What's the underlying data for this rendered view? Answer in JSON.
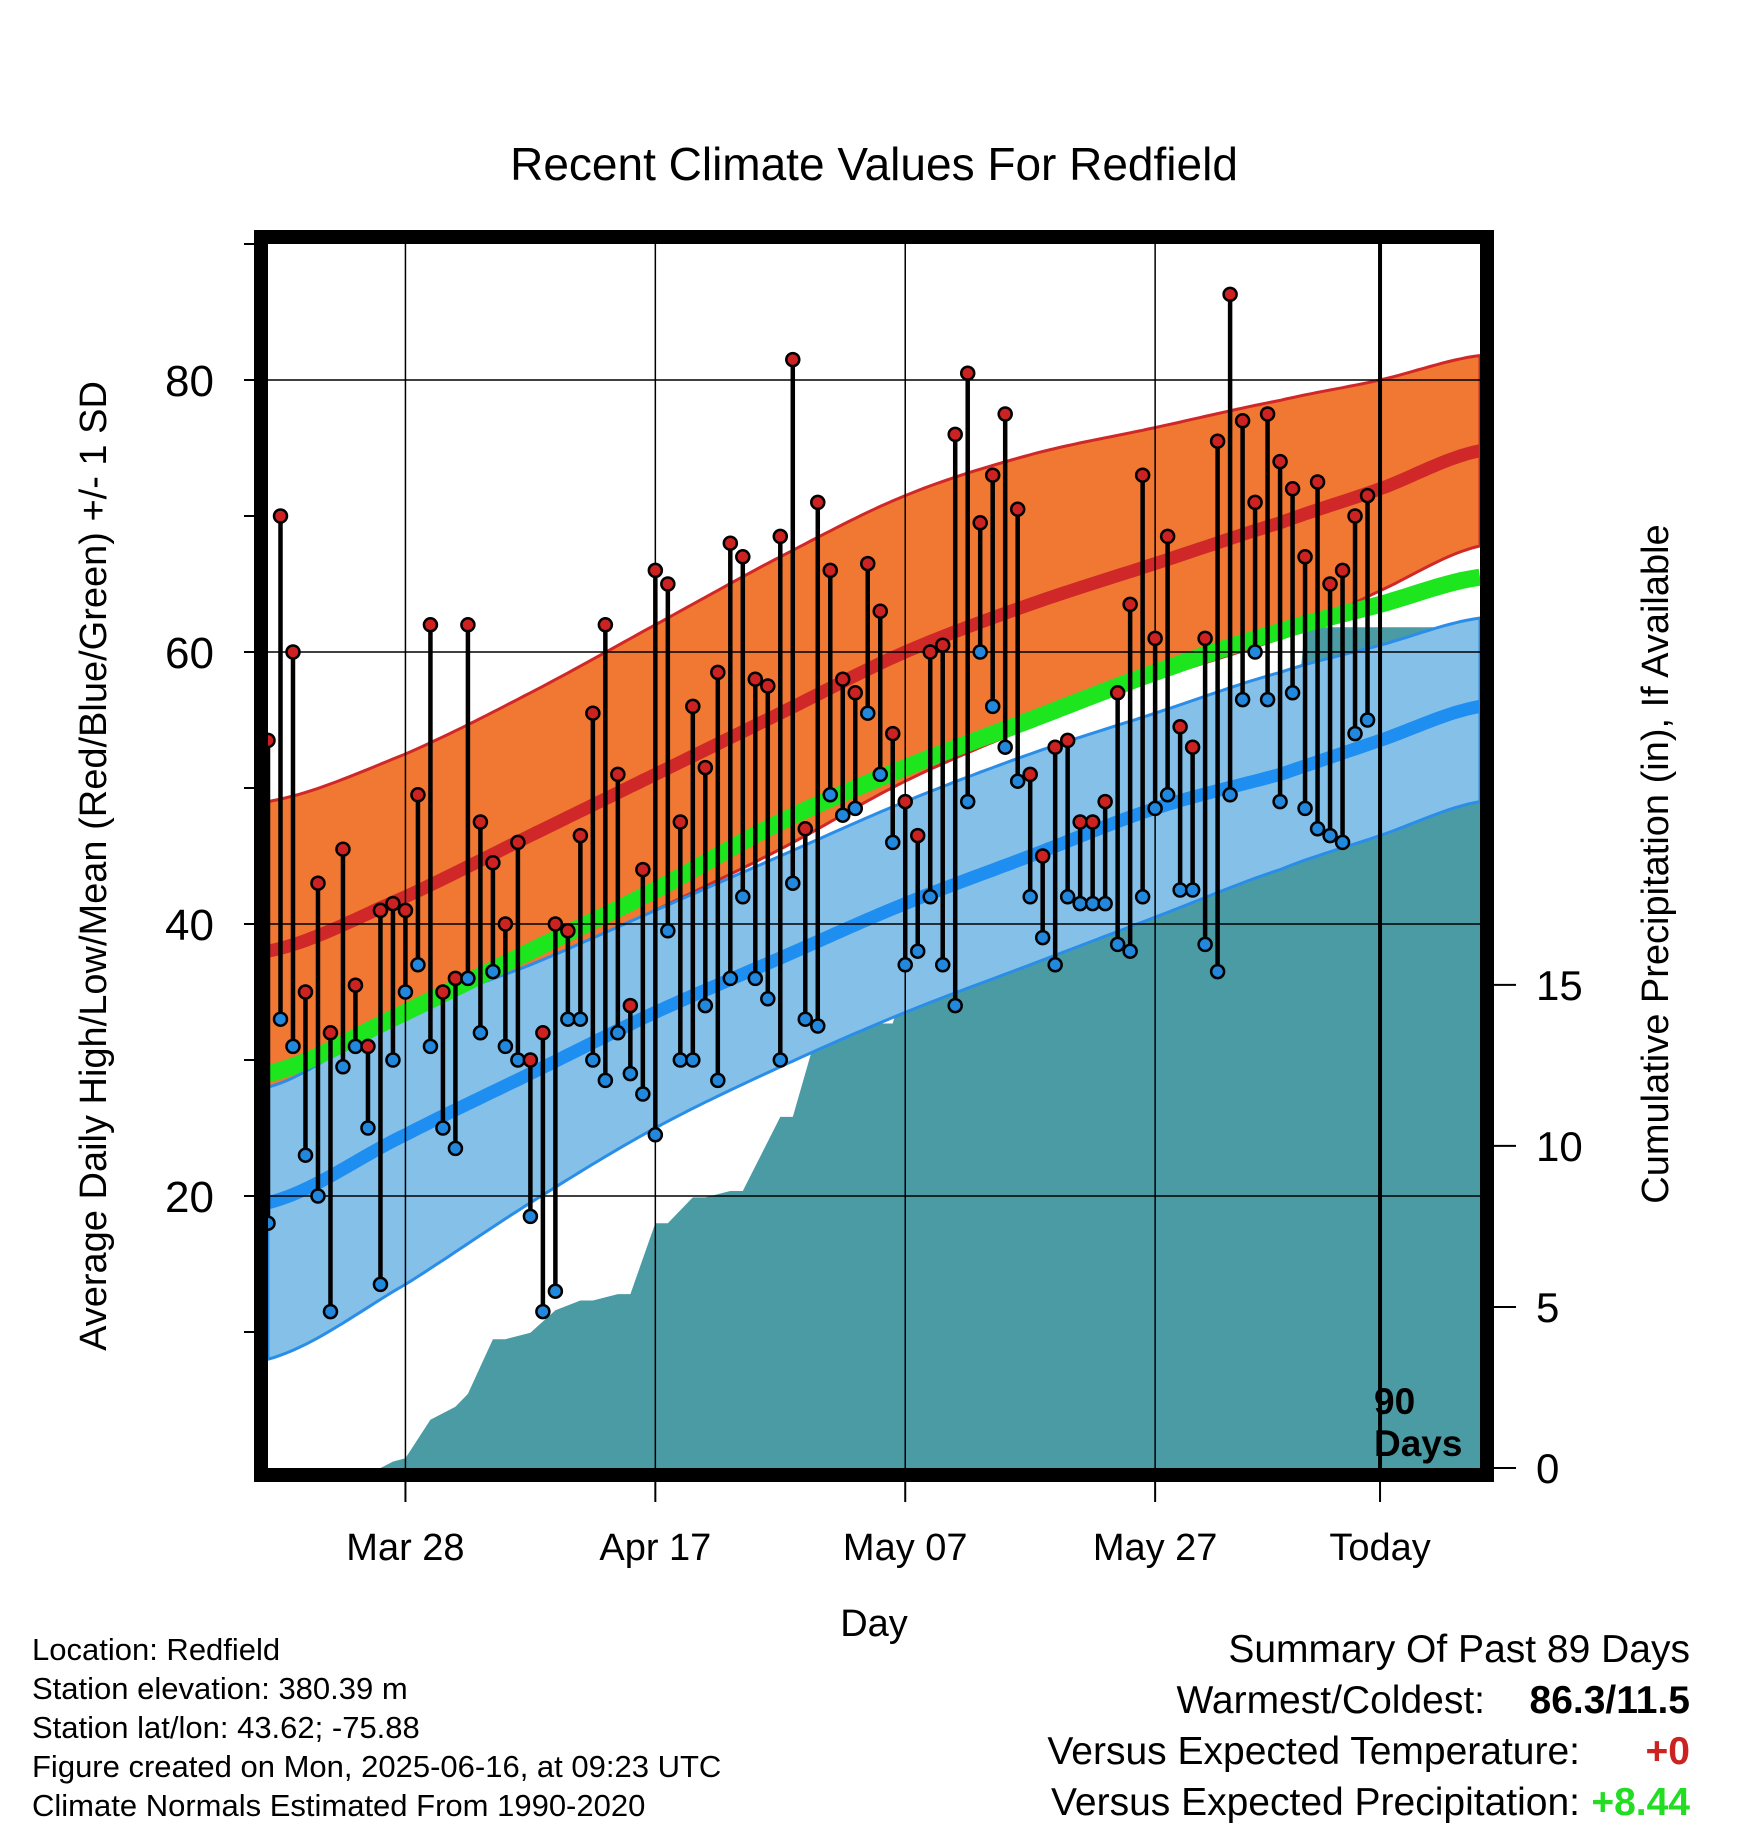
{
  "chart_data": {
    "type": "line",
    "title": "Recent Climate Values For Redfield",
    "xlabel": "Day",
    "ylabel": "Average Daily High/Low/Mean (Red/Blue/Green) +/- 1 SD",
    "y2label": "Cumulative Precipitation (in), If Available",
    "x_range_days": [
      -89,
      8
    ],
    "ylim": [
      0,
      90
    ],
    "y2lim": [
      0,
      38
    ],
    "x_tick_days": [
      -78,
      -58,
      -38,
      -18,
      0
    ],
    "x_tick_labels": [
      "Mar 28",
      "Apr 17",
      "May 07",
      "May 27",
      "Today"
    ],
    "y_ticks": [
      20,
      40,
      60,
      80
    ],
    "y_minor_ticks": [
      10,
      30,
      50,
      70,
      90
    ],
    "y2_ticks": [
      0,
      5,
      10,
      15
    ],
    "grid": true,
    "today_marker": {
      "day": 0,
      "label_line1": "90",
      "label_line2": "Days"
    },
    "normals": {
      "days": [
        -89,
        -78,
        -68,
        -58,
        -48,
        -38,
        -28,
        -18,
        -8,
        0,
        8
      ],
      "high_mean": [
        38.0,
        42.0,
        46.5,
        51.0,
        55.5,
        60.0,
        63.5,
        66.5,
        69.5,
        72.0,
        74.8
      ],
      "high_sd_upper": [
        49.0,
        52.5,
        57.0,
        62.0,
        67.0,
        71.5,
        74.5,
        76.5,
        78.5,
        80.0,
        81.8
      ],
      "high_sd_lower": [
        27.5,
        31.5,
        36.5,
        41.0,
        45.5,
        50.5,
        54.5,
        58.0,
        61.0,
        64.5,
        67.8
      ],
      "low_mean": [
        19.5,
        24.5,
        29.0,
        33.5,
        37.5,
        41.5,
        45.0,
        48.5,
        51.0,
        53.5,
        56.0
      ],
      "low_sd_upper": [
        28.0,
        33.5,
        37.0,
        41.0,
        45.0,
        49.0,
        52.5,
        55.5,
        58.5,
        60.5,
        62.5
      ],
      "low_sd_lower": [
        8.0,
        13.5,
        19.5,
        25.0,
        29.5,
        33.5,
        37.0,
        40.5,
        44.0,
        46.5,
        49.0
      ],
      "mean": [
        29.0,
        33.5,
        38.0,
        42.5,
        47.5,
        51.5,
        55.0,
        58.5,
        61.5,
        63.5,
        65.5
      ]
    },
    "series": [
      {
        "name": "High",
        "color": "#cc2222",
        "values": [
          53.5,
          70.0,
          60.0,
          35.0,
          43.0,
          32.0,
          45.5,
          35.5,
          31.0,
          41.0,
          41.5,
          41.0,
          49.5,
          62.0,
          35.0,
          36.0,
          62.0,
          47.5,
          44.5,
          40.0,
          46.0,
          30.0,
          32.0,
          40.0,
          39.5,
          46.5,
          55.5,
          62.0,
          51.0,
          34.0,
          44.0,
          66.0,
          65.0,
          47.5,
          56.0,
          51.5,
          58.5,
          68.0,
          67.0,
          58.0,
          57.5,
          68.5,
          81.5,
          47.0,
          71.0,
          66.0,
          58.0,
          57.0,
          66.5,
          63.0,
          54.0,
          49.0,
          46.5,
          60.0,
          60.5,
          76.0,
          80.5,
          69.5,
          73.0,
          77.5,
          70.5,
          51.0,
          45.0,
          53.0,
          53.5,
          47.5,
          47.5,
          49.0,
          57.0,
          63.5,
          73.0,
          61.0,
          68.5,
          54.5,
          53.0,
          61.0,
          75.5,
          86.3,
          77.0,
          71.0,
          77.5,
          74.0,
          72.0,
          67.0,
          72.5,
          65.0,
          66.0,
          70.0,
          71.5
        ]
      },
      {
        "name": "Low",
        "color": "#2288dd",
        "values": [
          18.0,
          33.0,
          31.0,
          23.0,
          20.0,
          11.5,
          29.5,
          31.0,
          25.0,
          13.5,
          30.0,
          35.0,
          37.0,
          31.0,
          25.0,
          23.5,
          36.0,
          32.0,
          36.5,
          31.0,
          30.0,
          18.5,
          11.5,
          13.0,
          33.0,
          33.0,
          30.0,
          28.5,
          32.0,
          29.0,
          27.5,
          24.5,
          39.5,
          30.0,
          30.0,
          34.0,
          28.5,
          36.0,
          42.0,
          36.0,
          34.5,
          30.0,
          43.0,
          33.0,
          32.5,
          49.5,
          48.0,
          48.5,
          55.5,
          51.0,
          46.0,
          37.0,
          38.0,
          42.0,
          37.0,
          34.0,
          49.0,
          60.0,
          56.0,
          53.0,
          50.5,
          42.0,
          39.0,
          37.0,
          42.0,
          41.5,
          41.5,
          41.5,
          38.5,
          38.0,
          42.0,
          48.5,
          49.5,
          42.5,
          42.5,
          38.5,
          36.5,
          49.5,
          56.5,
          60.0,
          56.5,
          49.0,
          57.0,
          48.5,
          47.0,
          46.5,
          46.0,
          54.0,
          55.0
        ]
      },
      {
        "name": "Cumulative Precipitation",
        "color": "#4a9ba3",
        "days": [
          -89,
          -80,
          -79,
          -78,
          -76,
          -74,
          -73,
          -71,
          -70,
          -68,
          -66,
          -64,
          -63,
          -61,
          -60,
          -58,
          -57,
          -55,
          -54,
          -52,
          -51,
          -48,
          -47,
          -45,
          -43,
          -42,
          -40,
          -39,
          -37,
          -36,
          -34,
          -33,
          -31,
          -30,
          -29,
          -27,
          -26,
          -24,
          -23,
          -21,
          -20,
          -17,
          -16,
          -14,
          -12,
          -10,
          -9,
          -7,
          -6,
          0,
          8
        ],
        "values": [
          0.0,
          0.0,
          0.2,
          0.3,
          1.5,
          1.9,
          2.3,
          4.0,
          4.0,
          4.2,
          4.9,
          5.2,
          5.2,
          5.4,
          5.4,
          7.6,
          7.6,
          8.4,
          8.4,
          8.6,
          8.6,
          10.9,
          10.9,
          13.6,
          13.8,
          13.8,
          13.8,
          13.8,
          16.4,
          16.4,
          17.0,
          17.0,
          17.3,
          17.3,
          17.3,
          18.1,
          18.1,
          18.3,
          18.3,
          18.9,
          18.9,
          22.0,
          22.0,
          22.1,
          22.2,
          22.2,
          22.3,
          22.3,
          26.1,
          26.1,
          26.1
        ]
      }
    ]
  },
  "footer": {
    "location": "Location: Redfield",
    "elevation": "Station elevation: 380.39 m",
    "latlon": "Station lat/lon: 43.62; -75.88",
    "created": "Figure created on Mon, 2025-06-16, at 09:23 UTC",
    "normals": "Climate Normals Estimated From 1990-2020"
  },
  "summary": {
    "title": "Summary Of Past 89 Days",
    "warm_cold_label": "Warmest/Coldest:",
    "warm_cold_value": "86.3/11.5",
    "temp_label": "Versus Expected Temperature:",
    "temp_value": "+0",
    "precip_label": "Versus Expected Precipitation:",
    "precip_value": "+8.44"
  }
}
